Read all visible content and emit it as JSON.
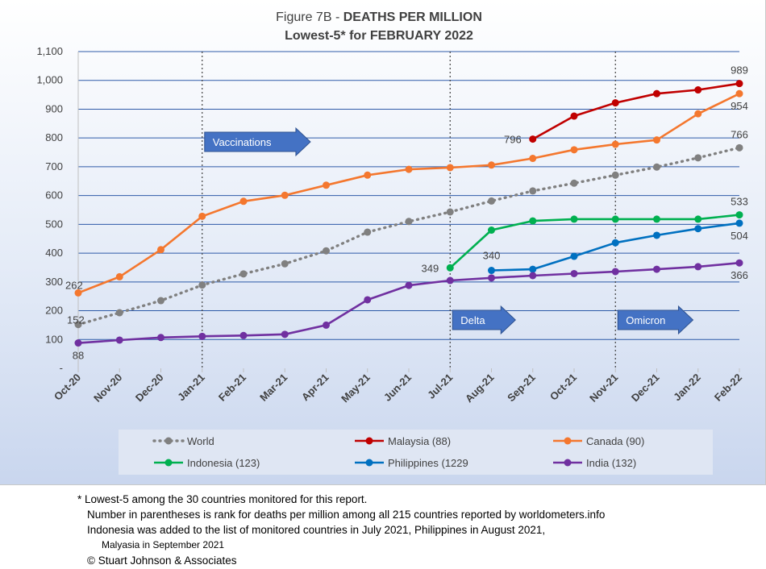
{
  "chart_data": {
    "type": "line",
    "title_prefix": "Figure 7B - ",
    "title_bold": "DEATHS PER MILLION",
    "subtitle": "Lowest-5* for FEBRUARY 2022",
    "categories": [
      "Oct-20",
      "Nov-20",
      "Dec-20",
      "Jan-21",
      "Feb-21",
      "Mar-21",
      "Apr-21",
      "May-21",
      "Jun-21",
      "Jul-21",
      "Aug-21",
      "Sep-21",
      "Oct-21",
      "Nov-21",
      "Dec-21",
      "Jan-22",
      "Feb-22"
    ],
    "y_ticks": [
      "-",
      "100",
      "200",
      "300",
      "400",
      "500",
      "600",
      "700",
      "800",
      "900",
      "1,000",
      "1,100"
    ],
    "ylim": [
      0,
      1100
    ],
    "grid": true,
    "legend_position": "bottom",
    "series": [
      {
        "name": "World",
        "color": "#808080",
        "style": "dotted",
        "values": [
          152,
          193,
          235,
          289,
          328,
          363,
          408,
          473,
          510,
          543,
          581,
          616,
          643,
          671,
          699,
          731,
          766
        ]
      },
      {
        "name": "Malaysia (88)",
        "color": "#c00000",
        "style": "solid",
        "values": [
          null,
          null,
          null,
          null,
          null,
          null,
          null,
          null,
          null,
          null,
          null,
          796,
          876,
          922,
          954,
          967,
          989
        ]
      },
      {
        "name": "Canada (90)",
        "color": "#f4772e",
        "style": "solid",
        "values": [
          262,
          318,
          412,
          528,
          580,
          601,
          636,
          671,
          691,
          697,
          706,
          729,
          759,
          778,
          793,
          884,
          954
        ]
      },
      {
        "name": "Indonesia (123)",
        "color": "#00b050",
        "style": "solid",
        "values": [
          null,
          null,
          null,
          null,
          null,
          null,
          null,
          null,
          null,
          349,
          480,
          512,
          518,
          518,
          518,
          518,
          533
        ]
      },
      {
        "name": "Philippines (1229",
        "color": "#0070c0",
        "style": "solid",
        "values": [
          null,
          null,
          null,
          null,
          null,
          null,
          null,
          null,
          null,
          null,
          340,
          344,
          389,
          436,
          462,
          485,
          504
        ]
      },
      {
        "name": "India (132)",
        "color": "#7030a0",
        "style": "solid",
        "values": [
          88,
          98,
          107,
          111,
          114,
          118,
          150,
          238,
          288,
          305,
          314,
          322,
          329,
          336,
          344,
          353,
          366
        ]
      }
    ],
    "data_labels": [
      {
        "text": "152",
        "series": "World",
        "index": 0,
        "pos": "above-overlap"
      },
      {
        "text": "262",
        "series": "Canada (90)",
        "index": 0,
        "pos": "left-low"
      },
      {
        "text": "88",
        "series": "India (132)",
        "index": 0,
        "pos": "below"
      },
      {
        "text": "796",
        "series": "Malaysia (88)",
        "index": 11,
        "pos": "left"
      },
      {
        "text": "989",
        "series": "Malaysia (88)",
        "index": 16,
        "pos": "above"
      },
      {
        "text": "954",
        "series": "Canada (90)",
        "index": 16,
        "pos": "below"
      },
      {
        "text": "766",
        "series": "World",
        "index": 16,
        "pos": "above"
      },
      {
        "text": "533",
        "series": "Indonesia (123)",
        "index": 16,
        "pos": "above"
      },
      {
        "text": "504",
        "series": "Philippines (1229",
        "index": 16,
        "pos": "below"
      },
      {
        "text": "366",
        "series": "India (132)",
        "index": 16,
        "pos": "below"
      },
      {
        "text": "349",
        "series": "Indonesia (123)",
        "index": 9,
        "pos": "left"
      },
      {
        "text": "340",
        "series": "Philippines (1229",
        "index": 10,
        "pos": "above-left"
      }
    ],
    "annotations": [
      {
        "text": "Vaccinations",
        "at_index": 3
      },
      {
        "text": "Delta",
        "at_index": 9
      },
      {
        "text": "Omicron",
        "at_index": 13
      }
    ],
    "annotation_color": "#4472c4",
    "event_lines_at": [
      "Jan-21",
      "Jul-21",
      "Nov-21"
    ]
  },
  "footnotes": [
    "* Lowest-5 among the 30 countries monitored for this report.",
    "Number in parentheses is rank for deaths per million among all 215 countries reported by worldometers.info",
    "Indonesia was added to the list of monitored countries in July 2021, Philippines in August 2021,",
    "Malyasia in September 2021",
    "© Stuart Johnson & Associates"
  ]
}
